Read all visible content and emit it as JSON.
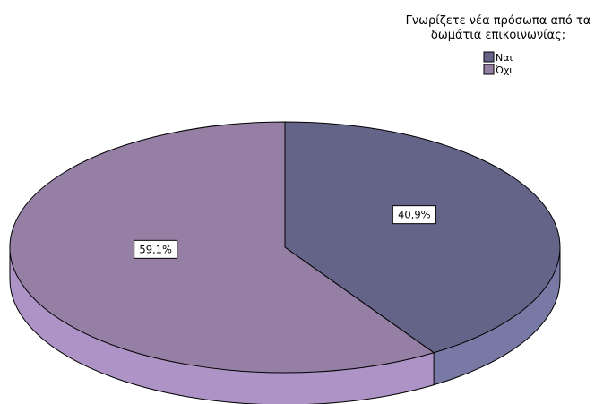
{
  "chart_data": {
    "type": "pie",
    "legend_title_lines": [
      "Γνωρίζετε νέα πρόσωπα από τα",
      "δωμάτια επικοινωνίας;"
    ],
    "legend_position": "top-right",
    "three_d": true,
    "slices": [
      {
        "name": "Ναι",
        "value": 40.9,
        "label": "40,9%",
        "color": "#646489",
        "side_color": "#787aa5"
      },
      {
        "name": "Όχι",
        "value": 59.1,
        "label": "59,1%",
        "color": "#967fa4",
        "side_color": "#ad93c6"
      }
    ]
  }
}
